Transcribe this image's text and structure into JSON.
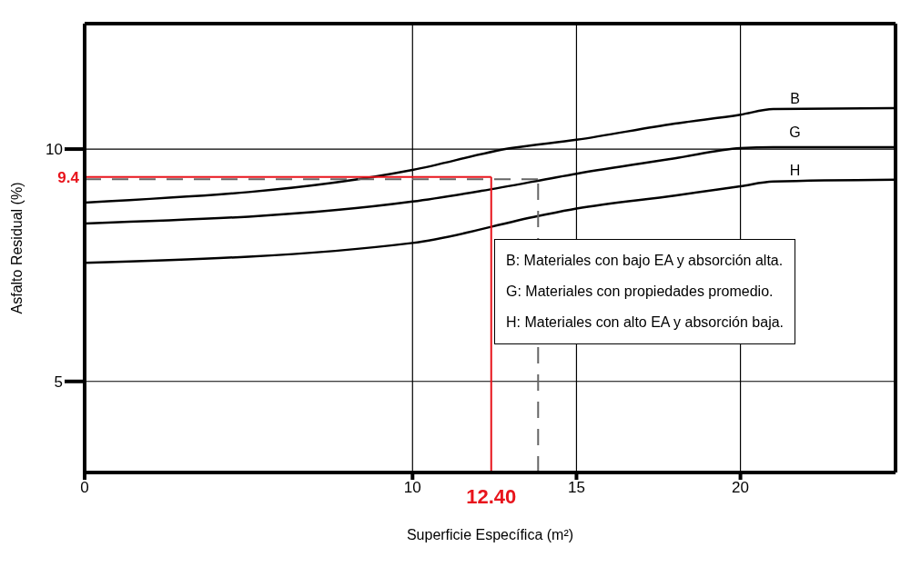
{
  "chart_data": {
    "type": "line",
    "xlabel": "Superficie Específica (m²)",
    "ylabel": "Asfalto Residual (%)",
    "xlim": [
      0,
      24.73
    ],
    "xticks": [
      0,
      10,
      15,
      20
    ],
    "ylim": [
      3.04,
      12.7
    ],
    "yticks": [
      5,
      10
    ],
    "grid": true,
    "marker": "none",
    "line_style": "solid",
    "series": [
      {
        "name": "B",
        "color": "#000000",
        "x": [
          0,
          10,
          13,
          15,
          18,
          20,
          21,
          24.73
        ],
        "values": [
          8.85,
          9.55,
          10.02,
          10.2,
          10.55,
          10.74,
          10.86,
          10.88
        ]
      },
      {
        "name": "G",
        "color": "#000000",
        "x": [
          0,
          10,
          12.1,
          15,
          18,
          20,
          21,
          24.73
        ],
        "values": [
          8.4,
          8.87,
          9.1,
          9.47,
          9.8,
          10.02,
          10.04,
          10.04
        ]
      },
      {
        "name": "H",
        "color": "#000000",
        "x": [
          0,
          10,
          13.83,
          15,
          18,
          20,
          21,
          24.73
        ],
        "values": [
          7.55,
          7.98,
          8.56,
          8.72,
          9.0,
          9.2,
          9.3,
          9.34
        ]
      }
    ],
    "ref_lines": [
      {
        "axis": "x",
        "value": 13.83,
        "color": "#666666",
        "line_style": "dashed"
      },
      {
        "axis": "y",
        "value": 9.35,
        "color": "#666666",
        "line_style": "dashed"
      },
      {
        "axis": "x",
        "value": 12.4,
        "label": "12.40",
        "color": "#e8141c",
        "line_style": "solid"
      },
      {
        "axis": "y",
        "value": 9.4,
        "label": "9.4",
        "color": "#e8141c",
        "line_style": "solid"
      }
    ],
    "annotations": [
      "B: Materiales con bajo EA y absorción alta.",
      "G: Materiales con propiedades promedio.",
      "H: Materiales con alto EA y absorción baja."
    ]
  }
}
